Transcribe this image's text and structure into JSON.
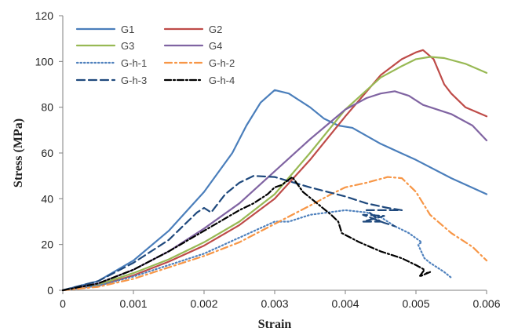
{
  "chart_data": {
    "type": "line",
    "title": "",
    "xlabel": "Strain",
    "ylabel": "Stress (MPa)",
    "xlim": [
      0,
      0.006
    ],
    "ylim": [
      0,
      120
    ],
    "xticks": [
      0,
      0.001,
      0.002,
      0.003,
      0.004,
      0.005,
      0.006
    ],
    "xtick_labels": [
      "0",
      "0.001",
      "0.002",
      "0.003",
      "0.004",
      "0.005",
      "0.006"
    ],
    "yticks": [
      0,
      20,
      40,
      60,
      80,
      100,
      120
    ],
    "ytick_labels": [
      "0",
      "20",
      "40",
      "60",
      "80",
      "100",
      "120"
    ],
    "grid": false,
    "legend_position": "top-left",
    "series": [
      {
        "name": "G1",
        "color": "#4a7ebb",
        "dash": "solid",
        "points": [
          [
            0,
            0
          ],
          [
            0.0005,
            4
          ],
          [
            0.001,
            13
          ],
          [
            0.0015,
            26
          ],
          [
            0.002,
            43
          ],
          [
            0.0024,
            60
          ],
          [
            0.0026,
            72
          ],
          [
            0.0028,
            82
          ],
          [
            0.003,
            87.5
          ],
          [
            0.0032,
            86
          ],
          [
            0.0035,
            80
          ],
          [
            0.0037,
            75
          ],
          [
            0.0039,
            72
          ],
          [
            0.0041,
            71
          ],
          [
            0.0045,
            64
          ],
          [
            0.005,
            57
          ],
          [
            0.0055,
            49
          ],
          [
            0.006,
            42
          ]
        ]
      },
      {
        "name": "G2",
        "color": "#be4b48",
        "dash": "solid",
        "points": [
          [
            0,
            0
          ],
          [
            0.0005,
            2
          ],
          [
            0.001,
            6.5
          ],
          [
            0.0015,
            12.5
          ],
          [
            0.002,
            19.5
          ],
          [
            0.0025,
            28.5
          ],
          [
            0.003,
            40
          ],
          [
            0.0035,
            57
          ],
          [
            0.004,
            76
          ],
          [
            0.0045,
            94
          ],
          [
            0.0048,
            101
          ],
          [
            0.005,
            104
          ],
          [
            0.0051,
            105
          ],
          [
            0.00525,
            101
          ],
          [
            0.0054,
            90
          ],
          [
            0.0055,
            86
          ],
          [
            0.0057,
            80
          ],
          [
            0.006,
            76
          ]
        ]
      },
      {
        "name": "G3",
        "color": "#98b954",
        "dash": "solid",
        "points": [
          [
            0,
            0
          ],
          [
            0.0005,
            2.5
          ],
          [
            0.001,
            7.5
          ],
          [
            0.0015,
            13.5
          ],
          [
            0.002,
            21
          ],
          [
            0.0025,
            30
          ],
          [
            0.003,
            42
          ],
          [
            0.0035,
            60
          ],
          [
            0.004,
            79
          ],
          [
            0.0045,
            93
          ],
          [
            0.0048,
            98
          ],
          [
            0.005,
            101
          ],
          [
            0.0052,
            102
          ],
          [
            0.0054,
            101.5
          ],
          [
            0.0057,
            99
          ],
          [
            0.006,
            95
          ]
        ]
      },
      {
        "name": "G4",
        "color": "#8064a2",
        "dash": "solid",
        "points": [
          [
            0,
            0
          ],
          [
            0.0005,
            3
          ],
          [
            0.001,
            9
          ],
          [
            0.0015,
            17
          ],
          [
            0.002,
            27
          ],
          [
            0.0025,
            38
          ],
          [
            0.003,
            52
          ],
          [
            0.0035,
            66
          ],
          [
            0.004,
            79
          ],
          [
            0.0043,
            84
          ],
          [
            0.0045,
            86
          ],
          [
            0.0047,
            87
          ],
          [
            0.0049,
            85
          ],
          [
            0.0051,
            81
          ],
          [
            0.0055,
            77
          ],
          [
            0.0058,
            72
          ],
          [
            0.006,
            65.5
          ]
        ]
      },
      {
        "name": "G-h-1",
        "color": "#4f81bd",
        "dash": "1.5,3",
        "points": [
          [
            0,
            0
          ],
          [
            0.0005,
            2
          ],
          [
            0.001,
            6
          ],
          [
            0.0015,
            11
          ],
          [
            0.002,
            16
          ],
          [
            0.0025,
            23
          ],
          [
            0.003,
            30
          ],
          [
            0.0032,
            30
          ],
          [
            0.0035,
            33
          ],
          [
            0.004,
            35
          ],
          [
            0.0043,
            34
          ],
          [
            0.0045,
            32
          ],
          [
            0.0047,
            28
          ],
          [
            0.0049,
            25
          ],
          [
            0.00508,
            21
          ],
          [
            0.00503,
            20
          ],
          [
            0.00512,
            14
          ],
          [
            0.0052,
            12
          ],
          [
            0.0054,
            8
          ],
          [
            0.0055,
            5.5
          ]
        ]
      },
      {
        "name": "G-h-2",
        "color": "#f79646",
        "dash": "9,4,2,4",
        "points": [
          [
            0,
            0
          ],
          [
            0.0005,
            1.5
          ],
          [
            0.001,
            5
          ],
          [
            0.0015,
            10
          ],
          [
            0.002,
            15
          ],
          [
            0.0025,
            21
          ],
          [
            0.003,
            29
          ],
          [
            0.0035,
            37
          ],
          [
            0.0038,
            42
          ],
          [
            0.004,
            45
          ],
          [
            0.0043,
            47
          ],
          [
            0.0046,
            49.5
          ],
          [
            0.0048,
            49
          ],
          [
            0.005,
            43
          ],
          [
            0.0052,
            33
          ],
          [
            0.0055,
            25
          ],
          [
            0.0058,
            19
          ],
          [
            0.006,
            13
          ]
        ]
      },
      {
        "name": "G-h-3",
        "color": "#1f497d",
        "dash": "10,5",
        "points": [
          [
            0,
            0
          ],
          [
            0.0005,
            4
          ],
          [
            0.001,
            12
          ],
          [
            0.0015,
            22
          ],
          [
            0.0019,
            34
          ],
          [
            0.002,
            36
          ],
          [
            0.0021,
            34
          ],
          [
            0.0023,
            42
          ],
          [
            0.0025,
            47
          ],
          [
            0.0027,
            50
          ],
          [
            0.003,
            49.5
          ],
          [
            0.0035,
            45
          ],
          [
            0.004,
            41
          ],
          [
            0.0043,
            38
          ],
          [
            0.0046,
            36
          ],
          [
            0.0048,
            35
          ],
          [
            0.0043,
            35
          ],
          [
            0.0045,
            30
          ],
          [
            0.00425,
            30
          ],
          [
            0.00455,
            32.5
          ],
          [
            0.00425,
            33
          ],
          [
            0.00455,
            29.5
          ],
          [
            0.0047,
            28
          ]
        ]
      },
      {
        "name": "G-h-4",
        "color": "#000000",
        "dash": "8,3,2,3",
        "points": [
          [
            0,
            0
          ],
          [
            0.0005,
            3
          ],
          [
            0.001,
            9
          ],
          [
            0.0015,
            17
          ],
          [
            0.002,
            26
          ],
          [
            0.0025,
            35
          ],
          [
            0.0027,
            38
          ],
          [
            0.0029,
            42
          ],
          [
            0.003,
            45
          ],
          [
            0.0031,
            46
          ],
          [
            0.00325,
            49.5
          ],
          [
            0.0034,
            43
          ],
          [
            0.0036,
            38
          ],
          [
            0.0038,
            33
          ],
          [
            0.0039,
            30
          ],
          [
            0.00395,
            25
          ],
          [
            0.0042,
            21
          ],
          [
            0.0045,
            17
          ],
          [
            0.0048,
            14
          ],
          [
            0.005,
            11
          ],
          [
            0.00512,
            9
          ],
          [
            0.00505,
            6
          ],
          [
            0.0052,
            8
          ],
          [
            0.00515,
            7.5
          ]
        ]
      }
    ]
  }
}
